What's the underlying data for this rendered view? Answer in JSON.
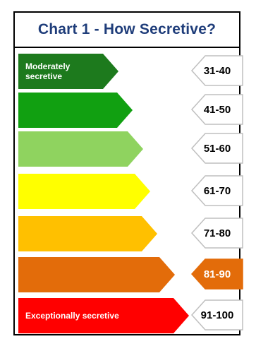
{
  "chart_data": {
    "type": "table",
    "title": "Chart 1 - How Secretive?",
    "bands": [
      {
        "label": "Moderately secretive",
        "range": "31-40",
        "color": "#1d7a1d",
        "highlighted": false
      },
      {
        "label": "",
        "range": "41-50",
        "color": "#11a011",
        "highlighted": false
      },
      {
        "label": "",
        "range": "51-60",
        "color": "#8fd35f",
        "highlighted": false
      },
      {
        "label": "",
        "range": "61-70",
        "color": "#ffff00",
        "highlighted": false
      },
      {
        "label": "",
        "range": "71-80",
        "color": "#ffc000",
        "highlighted": false
      },
      {
        "label": "",
        "range": "81-90",
        "color": "#e36c0a",
        "highlighted": true
      },
      {
        "label": "Exceptionally secretive",
        "range": "91-100",
        "color": "#ff0000",
        "highlighted": false
      }
    ],
    "highlight_color": "#e36c0a"
  }
}
